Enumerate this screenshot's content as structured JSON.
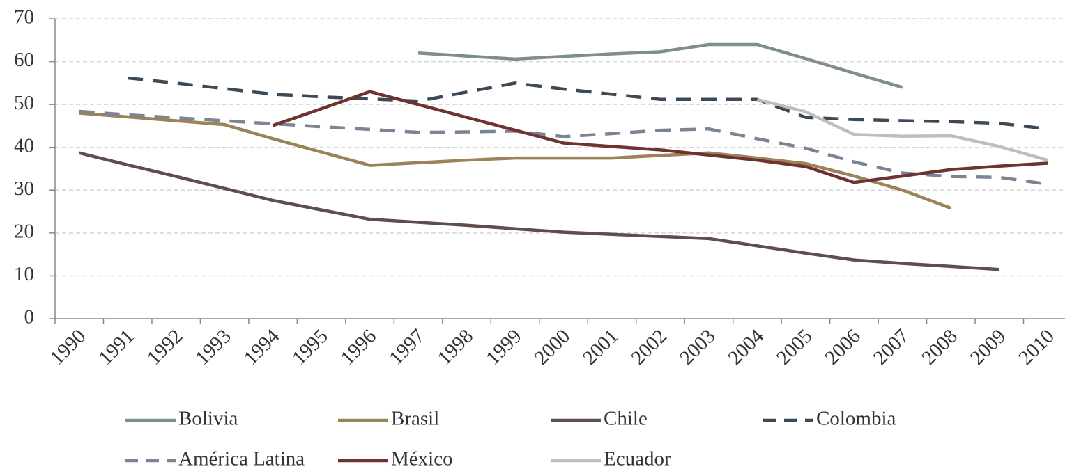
{
  "chart_data": {
    "type": "line",
    "categories": [
      "1990",
      "1991",
      "1992",
      "1993",
      "1994",
      "1995",
      "1996",
      "1997",
      "1998",
      "1999",
      "2000",
      "2001",
      "2002",
      "2003",
      "2004",
      "2005",
      "2006",
      "2007",
      "2008",
      "2009",
      "2010"
    ],
    "series": [
      {
        "name": "Bolivia",
        "color": "#7f8f80",
        "line_style": "solid",
        "values": [
          null,
          null,
          null,
          null,
          null,
          null,
          null,
          62,
          61.3,
          60.6,
          61.2,
          61.8,
          62.3,
          64,
          64,
          60.7,
          57.3,
          54,
          null,
          null,
          null
        ]
      },
      {
        "name": "Brasil",
        "color": "#9c8258",
        "line_style": "solid",
        "values": [
          48,
          47.1,
          46.2,
          45.3,
          42,
          38.9,
          35.8,
          36.4,
          37,
          37.5,
          37.5,
          37.5,
          38.1,
          38.7,
          37.5,
          36.2,
          33.3,
          30,
          25.8,
          null,
          null
        ]
      },
      {
        "name": "Chile",
        "color": "#5f4e4a",
        "line_style": "solid",
        "values": [
          38.7,
          35.9,
          33.2,
          30.4,
          27.6,
          25.4,
          23.2,
          22.5,
          21.8,
          21,
          20.2,
          19.7,
          19.2,
          18.7,
          17,
          15.3,
          13.7,
          12.9,
          12.2,
          11.5,
          null
        ]
      },
      {
        "name": "Colombia",
        "color": "#3c4a58",
        "line_style": "dashed",
        "values": [
          null,
          56.2,
          55,
          53.7,
          52.4,
          51.8,
          51.3,
          50.8,
          52.9,
          55,
          53.6,
          52.4,
          51.2,
          51.2,
          51.2,
          47,
          46.5,
          46.2,
          46,
          45.6,
          44.3
        ]
      },
      {
        "name": "América Latina",
        "color": "#7b8494",
        "line_style": "dashed",
        "values": [
          48.4,
          47.6,
          46.9,
          46.2,
          45.5,
          44.8,
          44.2,
          43.5,
          43.6,
          43.8,
          42.5,
          43.2,
          44,
          44.3,
          42,
          39.8,
          36.6,
          34,
          33.2,
          33,
          31.4
        ]
      },
      {
        "name": "México",
        "color": "#6e3330",
        "line_style": "solid",
        "values": [
          null,
          null,
          null,
          null,
          45.1,
          49,
          53,
          50,
          47,
          44,
          41,
          40.2,
          39.4,
          38.2,
          37,
          35.5,
          31.8,
          33.3,
          34.8,
          35.6,
          36.3
        ]
      },
      {
        "name": "Ecuador",
        "color": "#bcbfbc",
        "line_style": "solid",
        "values": [
          null,
          null,
          null,
          null,
          null,
          null,
          null,
          null,
          null,
          null,
          null,
          null,
          null,
          null,
          51.2,
          48.3,
          43,
          42.6,
          42.7,
          40.2,
          37
        ]
      }
    ],
    "ylim": [
      0,
      70
    ],
    "yticks": [
      0,
      10,
      20,
      30,
      40,
      50,
      60,
      70
    ],
    "grid": true,
    "legend": "bottom"
  }
}
